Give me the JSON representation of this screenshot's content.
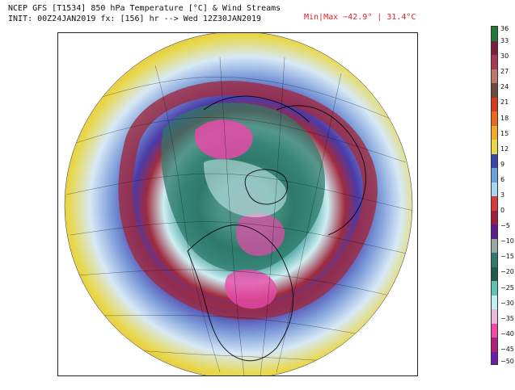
{
  "header": {
    "title_line": "NCEP GFS [T1534] 850 hPa Temperature [°C] & Wind Streams",
    "init_line": "INIT: 00Z24JAN2019 fx: [156] hr --> Wed 12Z30JAN2019",
    "minmax": "Min|Max −42.9° | 31.4°C"
  },
  "colorbar": {
    "labels": [
      "36",
      "33",
      "30",
      "27",
      "24",
      "21",
      "18",
      "15",
      "12",
      "9",
      "6",
      "3",
      "0",
      "−5",
      "−10",
      "−15",
      "−20",
      "−25",
      "−30",
      "−35",
      "−40",
      "−45",
      "−50"
    ],
    "colors": [
      "#1f7a3a",
      "#7a1f3f",
      "#a8384f",
      "#b97a6a",
      "#6b4a3c",
      "#d83a1f",
      "#e66a1e",
      "#f2a82a",
      "#e7d84a",
      "#3a47a8",
      "#6aa0d8",
      "#a7d6f0",
      "#d83a3a",
      "#a01f3f",
      "#5c1f8a",
      "#9aa8a4",
      "#2f7a6a",
      "#1f5a4a",
      "#62c0b0",
      "#bfeff0",
      "#e8b8d8",
      "#f04aa8",
      "#b01f7a",
      "#6a1fa8"
    ]
  },
  "map": {
    "type": "polar stereographic temperature map",
    "colors": {
      "warm": "#e88a3a",
      "mild": "#e8d84a",
      "cool": "#7a9ad8",
      "purple": "#4a3aa8",
      "red_band": "#a02a3f",
      "teal": "#2f7a6a",
      "cyan": "#9ae6e6",
      "pink": "#e84aa8"
    }
  }
}
